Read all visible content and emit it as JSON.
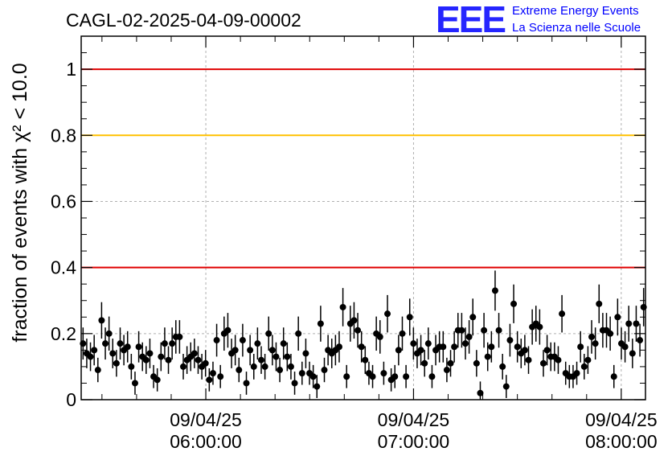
{
  "chart_data": {
    "type": "scatter",
    "title": "CAGL-02-2025-04-09-00002",
    "ylabel": "fraction of events with χ² < 10.0",
    "xlabel": "",
    "ylim": [
      0,
      1.1
    ],
    "grid": true,
    "x_ticks": [
      {
        "date": "09/04/25",
        "time": "06:00:00",
        "x": "2025-04-09T06:00:00"
      },
      {
        "date": "09/04/25",
        "time": "07:00:00",
        "x": "2025-04-09T07:00:00"
      },
      {
        "date": "09/04/25",
        "time": "08:00:00",
        "x": "2025-04-09T08:00:00"
      }
    ],
    "x_range": [
      "2025-04-09T05:24:00",
      "2025-04-09T08:07:00"
    ],
    "y_ticks": [
      "0",
      "0.2",
      "0.4",
      "0.6",
      "0.8",
      "1"
    ],
    "reference_lines": [
      {
        "y": 1.0,
        "color": "#e00000"
      },
      {
        "y": 0.8,
        "color": "#ffc000"
      },
      {
        "y": 0.4,
        "color": "#e00000"
      }
    ],
    "series": [
      {
        "marker_color": "#000000",
        "x_start": "2025-04-09T05:24:00",
        "x_end": "2025-04-09T08:07:00",
        "values": [
          0.17,
          0.14,
          0.13,
          0.15,
          0.09,
          0.24,
          0.17,
          0.2,
          0.14,
          0.11,
          0.17,
          0.15,
          0.16,
          0.1,
          0.05,
          0.16,
          0.13,
          0.12,
          0.14,
          0.07,
          0.06,
          0.13,
          0.17,
          0.12,
          0.17,
          0.19,
          0.19,
          0.1,
          0.12,
          0.13,
          0.14,
          0.12,
          0.1,
          0.11,
          0.06,
          0.08,
          0.18,
          0.07,
          0.2,
          0.21,
          0.14,
          0.15,
          0.09,
          0.18,
          0.05,
          0.15,
          0.1,
          0.17,
          0.12,
          0.1,
          0.2,
          0.15,
          0.13,
          0.09,
          0.17,
          0.13,
          0.1,
          0.05,
          0.2,
          0.08,
          0.14,
          0.08,
          0.07,
          0.04,
          0.23,
          0.09,
          0.15,
          0.14,
          0.15,
          0.16,
          0.28,
          0.07,
          0.23,
          0.24,
          0.21,
          0.16,
          0.12,
          0.08,
          0.07,
          0.2,
          0.19,
          0.08,
          0.26,
          0.06,
          0.07,
          0.15,
          0.2,
          0.07,
          0.25,
          0.17,
          0.14,
          0.15,
          0.11,
          0.17,
          0.07,
          0.15,
          0.16,
          0.16,
          0.09,
          0.11,
          0.16,
          0.21,
          0.21,
          0.17,
          0.19,
          0.25,
          0.11,
          0.02,
          0.21,
          0.13,
          0.16,
          0.33,
          0.21,
          0.1,
          0.04,
          0.18,
          0.29,
          0.16,
          0.14,
          0.15,
          0.12,
          0.22,
          0.23,
          0.22,
          0.11,
          0.15,
          0.13,
          0.13,
          0.12,
          0.26,
          0.08,
          0.07,
          0.07,
          0.08,
          0.16,
          0.1,
          0.12,
          0.19,
          0.17,
          0.29,
          0.21,
          0.21,
          0.2,
          0.07,
          0.25,
          0.17,
          0.16,
          0.23,
          0.14,
          0.23,
          0.18,
          0.28
        ]
      }
    ]
  },
  "logo": {
    "mark": "EEE",
    "line1": "Extreme Energy Events",
    "line2": "La Scienza nelle Scuole",
    "color": "#0000ff"
  }
}
